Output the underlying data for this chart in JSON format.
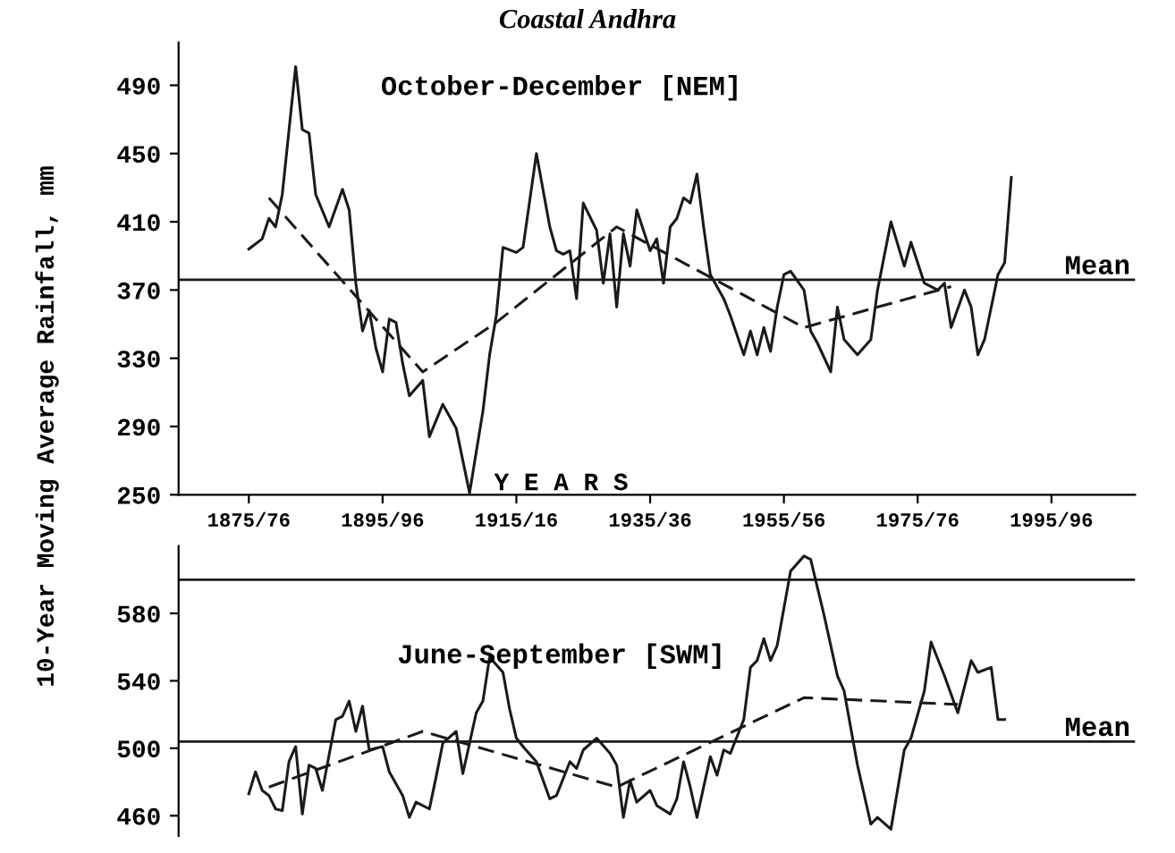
{
  "chart_data": [
    {
      "type": "line",
      "title": "Coastal Andhra",
      "subtitle": "October-December [NEM]",
      "xlabel": "Y E A R S",
      "ylabel": "10-Year Moving Average Rainfall, mm",
      "categories": [
        null,
        null,
        null,
        null,
        null,
        null,
        null,
        null,
        null,
        null,
        "1875/76",
        null,
        null,
        null,
        null,
        null,
        null,
        null,
        null,
        null,
        null,
        null,
        null,
        null,
        null,
        null,
        null,
        null,
        null,
        null,
        "1895/96",
        null,
        null,
        null,
        null,
        null,
        null,
        null,
        null,
        null,
        null,
        null,
        null,
        null,
        null,
        null,
        null,
        null,
        null,
        null,
        "1915/16",
        null,
        null,
        null,
        null,
        null,
        null,
        null,
        null,
        null,
        null,
        null,
        null,
        null,
        null,
        null,
        null,
        null,
        null,
        null,
        "1935/36",
        null,
        null,
        null,
        null,
        null,
        null,
        null,
        null,
        null,
        null,
        null,
        null,
        null,
        null,
        null,
        null,
        null,
        null,
        null,
        "1955/56",
        null,
        null,
        null,
        null,
        null,
        null,
        null,
        null,
        null,
        null,
        null,
        null,
        null,
        null,
        null,
        null,
        null,
        null,
        null,
        "1975/76",
        null,
        null,
        null,
        null,
        null,
        null,
        null,
        null,
        null,
        null,
        null,
        null,
        null,
        null,
        null,
        null,
        null,
        null,
        null,
        "1995/96",
        null,
        null,
        null,
        null,
        null,
        null,
        null,
        null,
        null,
        null,
        null,
        null
      ],
      "ylim": [
        250,
        515
      ],
      "yticks": [
        250,
        290,
        330,
        370,
        410,
        450,
        490
      ],
      "grid": false,
      "legend": false,
      "marker": "none",
      "series": [
        {
          "color": "#1a1a1a",
          "line_style": "solid",
          "values": [
            null,
            null,
            null,
            null,
            null,
            null,
            null,
            null,
            null,
            null,
            394,
            null,
            400,
            412,
            407,
            426,
            null,
            501,
            464,
            462,
            426,
            null,
            407,
            null,
            429,
            417,
            374,
            346,
            358,
            336,
            322,
            353,
            351,
            327,
            308,
            null,
            317,
            284,
            null,
            303,
            null,
            289,
            null,
            251,
            null,
            299,
            332,
            355,
            395,
            null,
            392,
            395,
            null,
            450,
            null,
            407,
            393,
            391,
            393,
            365,
            421,
            null,
            405,
            374,
            403,
            360,
            403,
            384,
            417,
            null,
            393,
            400,
            374,
            407,
            412,
            424,
            421,
            438,
            407,
            379,
            null,
            365,
            355,
            null,
            332,
            346,
            332,
            348,
            334,
            360,
            379,
            381,
            null,
            370,
            346,
            339,
            null,
            322,
            360,
            341,
            null,
            332,
            null,
            341,
            370,
            null,
            410,
            null,
            384,
            398,
            null,
            374,
            null,
            370,
            374,
            348,
            null,
            370,
            360,
            332,
            341,
            360,
            379,
            386,
            436,
            null,
            null,
            null,
            null,
            null,
            null,
            null,
            null,
            null,
            null,
            null,
            null,
            null,
            null,
            null,
            null,
            null,
            null
          ]
        },
        {
          "color": "#1a1a1a",
          "line_style": "dashed",
          "values": [
            null,
            null,
            null,
            null,
            null,
            null,
            null,
            null,
            null,
            null,
            null,
            null,
            null,
            424,
            null,
            null,
            null,
            null,
            null,
            null,
            null,
            null,
            null,
            null,
            null,
            null,
            null,
            null,
            null,
            null,
            null,
            null,
            null,
            null,
            null,
            null,
            322,
            null,
            null,
            null,
            null,
            null,
            null,
            null,
            null,
            null,
            null,
            351,
            null,
            null,
            null,
            null,
            null,
            null,
            null,
            null,
            null,
            null,
            null,
            null,
            null,
            null,
            null,
            null,
            null,
            407,
            null,
            null,
            null,
            null,
            null,
            null,
            null,
            null,
            null,
            null,
            null,
            null,
            null,
            null,
            null,
            null,
            null,
            null,
            null,
            null,
            null,
            null,
            null,
            null,
            null,
            null,
            null,
            348,
            null,
            null,
            null,
            null,
            null,
            null,
            null,
            null,
            null,
            null,
            null,
            null,
            null,
            null,
            null,
            null,
            null,
            null,
            null,
            null,
            null,
            372,
            null,
            null,
            null,
            null,
            null,
            null,
            null,
            null,
            null,
            null,
            null,
            null,
            null,
            null,
            null,
            null,
            null,
            null,
            null,
            null,
            null,
            null,
            null,
            null,
            null,
            null,
            null
          ]
        }
      ],
      "ref_lines": [
        {
          "axis": "y",
          "value": 376,
          "label": "Mean",
          "color": "#1a1a1a"
        }
      ]
    },
    {
      "type": "line",
      "subtitle": "June-September [SWM]",
      "categories": [
        null,
        null,
        null,
        null,
        null,
        null,
        null,
        null,
        null,
        null,
        null,
        null,
        null,
        null,
        null,
        null,
        null,
        null,
        null,
        null,
        null,
        null,
        null,
        null,
        null,
        null,
        null,
        null,
        null,
        null,
        null,
        null,
        null,
        null,
        null,
        null,
        null,
        null,
        null,
        null,
        null,
        null,
        null,
        null,
        null,
        null,
        null,
        null,
        null,
        null,
        null,
        null,
        null,
        null,
        null,
        null,
        null,
        null,
        null,
        null,
        null,
        null,
        null,
        null,
        null,
        null,
        null,
        null,
        null,
        null,
        null,
        null,
        null,
        null,
        null,
        null,
        null,
        null,
        null,
        null,
        null,
        null,
        null,
        null,
        null,
        null,
        null,
        null,
        null,
        null,
        null,
        null,
        null,
        null,
        null,
        null,
        null,
        null,
        null,
        null,
        null,
        null,
        null,
        null,
        null,
        null,
        null,
        null,
        null,
        null,
        null,
        null,
        null,
        null,
        null,
        null,
        null,
        null,
        null,
        null,
        null,
        null,
        null,
        null,
        null,
        null,
        null,
        null,
        null,
        null,
        null,
        null,
        null,
        null,
        null,
        null,
        null,
        null,
        null,
        null,
        null,
        null,
        null
      ],
      "ylim": [
        448,
        620
      ],
      "yticks": [
        460,
        500,
        540,
        580
      ],
      "tick_labels": "y",
      "grid": false,
      "legend": false,
      "marker": "none",
      "series": [
        {
          "color": "#1a1a1a",
          "line_style": "solid",
          "values": [
            null,
            null,
            null,
            null,
            null,
            null,
            null,
            null,
            null,
            null,
            473,
            486,
            475,
            472,
            464,
            463,
            492,
            501,
            461,
            490,
            488,
            475,
            null,
            517,
            519,
            528,
            510,
            525,
            499,
            null,
            501,
            486,
            null,
            472,
            459,
            468,
            null,
            464,
            483,
            503,
            null,
            510,
            485,
            null,
            521,
            528,
            554,
            null,
            545,
            523,
            506,
            501,
            null,
            492,
            null,
            470,
            472,
            null,
            492,
            488,
            499,
            null,
            506,
            null,
            497,
            490,
            459,
            481,
            468,
            null,
            475,
            466,
            null,
            461,
            470,
            492,
            477,
            459,
            null,
            495,
            484,
            499,
            497,
            null,
            517,
            548,
            552,
            565,
            552,
            561,
            583,
            605,
            null,
            614,
            612,
            null,
            579,
            null,
            543,
            534,
            null,
            490,
            null,
            455,
            459,
            null,
            452,
            null,
            499,
            506,
            null,
            534,
            563,
            null,
            543,
            null,
            521,
            null,
            552,
            545,
            null,
            548,
            517,
            517,
            null,
            null,
            null,
            null,
            null,
            null,
            null,
            null,
            null,
            null,
            null,
            null,
            null,
            null,
            null,
            null,
            null,
            null,
            null
          ]
        },
        {
          "color": "#1a1a1a",
          "line_style": "dashed",
          "values": [
            null,
            null,
            null,
            null,
            null,
            null,
            null,
            null,
            null,
            null,
            null,
            null,
            null,
            477,
            null,
            null,
            null,
            null,
            null,
            null,
            null,
            null,
            null,
            null,
            null,
            null,
            null,
            null,
            null,
            null,
            null,
            null,
            null,
            null,
            null,
            null,
            510,
            null,
            null,
            null,
            null,
            null,
            null,
            null,
            null,
            null,
            null,
            null,
            null,
            null,
            null,
            null,
            null,
            null,
            null,
            null,
            null,
            null,
            null,
            null,
            null,
            null,
            null,
            null,
            null,
            477,
            null,
            null,
            null,
            null,
            null,
            null,
            null,
            null,
            null,
            null,
            null,
            null,
            null,
            null,
            null,
            null,
            null,
            null,
            null,
            null,
            null,
            null,
            null,
            null,
            null,
            null,
            null,
            530,
            null,
            null,
            null,
            null,
            null,
            null,
            null,
            null,
            null,
            null,
            null,
            null,
            null,
            null,
            null,
            null,
            null,
            null,
            null,
            null,
            null,
            null,
            526,
            null,
            null,
            null,
            null,
            null,
            null,
            null,
            null,
            null,
            null,
            null,
            null,
            null,
            null,
            null,
            null,
            null,
            null,
            null,
            null,
            null,
            null,
            null,
            null,
            null,
            null
          ]
        }
      ],
      "ref_lines": [
        {
          "axis": "y",
          "value": 504,
          "label": "Mean",
          "color": "#1a1a1a"
        },
        {
          "axis": "y",
          "value": 600,
          "color": "#1a1a1a"
        }
      ]
    }
  ]
}
